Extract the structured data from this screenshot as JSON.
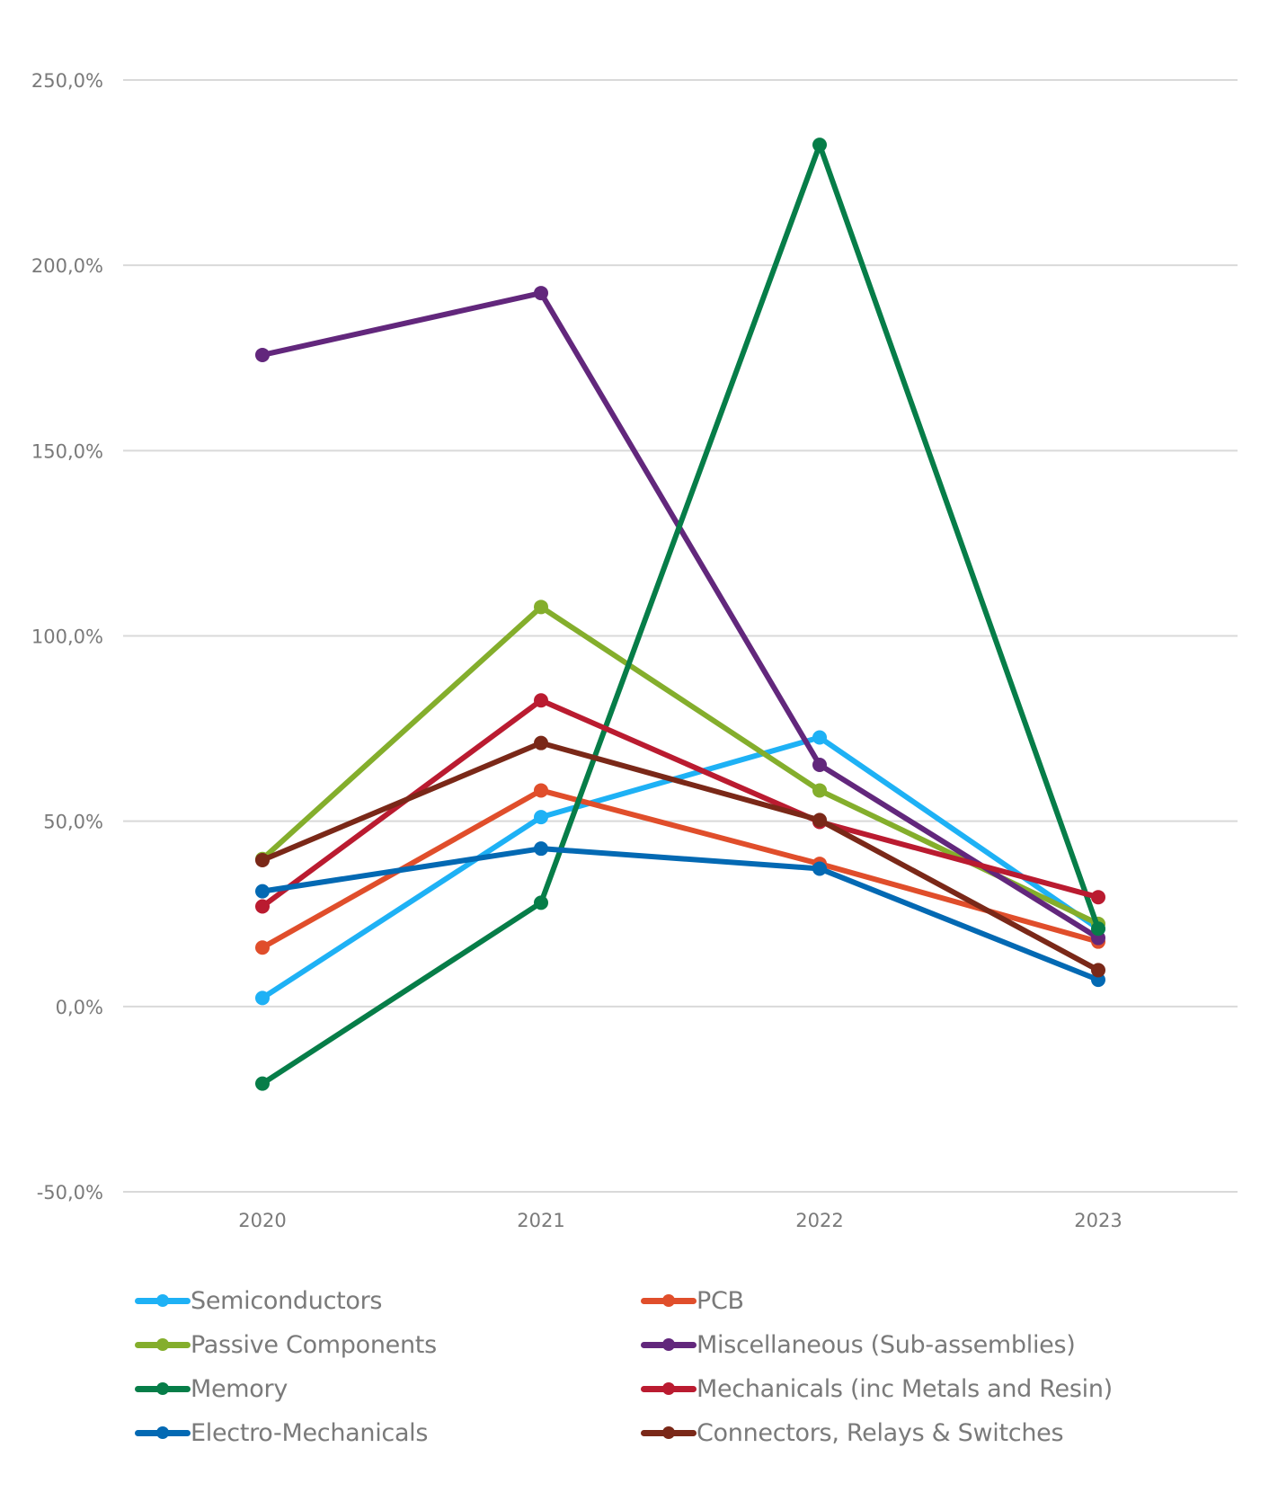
{
  "chart_data": {
    "type": "line",
    "title": "",
    "xlabel": "",
    "ylabel": "",
    "categories": [
      "2020",
      "2021",
      "2022",
      "2023"
    ],
    "ylim": [
      -50,
      250
    ],
    "yticks": [
      -50,
      0,
      50,
      100,
      150,
      200,
      250
    ],
    "ytick_labels": [
      "-50,0%",
      "0,0%",
      "50,0%",
      "100,0%",
      "150,0%",
      "200,0%",
      "250,0%"
    ],
    "grid": true,
    "legend_position": "bottom",
    "series": [
      {
        "name": "Semiconductors",
        "color": "#1EB1F5",
        "values": [
          2.3,
          51.1,
          72.6,
          21.0
        ]
      },
      {
        "name": "PCB",
        "color": "#E04E2B",
        "values": [
          15.9,
          58.3,
          38.5,
          17.5
        ]
      },
      {
        "name": "Passive Components",
        "color": "#84AE2C",
        "values": [
          39.8,
          107.8,
          58.3,
          22.3
        ]
      },
      {
        "name": "Miscellaneous (Sub-assemblies)",
        "color": "#62277C",
        "values": [
          175.8,
          192.5,
          65.2,
          18.5
        ]
      },
      {
        "name": "Memory",
        "color": "#067D48",
        "values": [
          -20.8,
          28.0,
          232.5,
          21.0
        ]
      },
      {
        "name": "Mechanicals (inc Metals and Resin)",
        "color": "#BA1B30",
        "values": [
          27.0,
          82.6,
          49.8,
          29.5
        ]
      },
      {
        "name": "Electro-Mechanicals",
        "color": "#0369B3",
        "values": [
          31.1,
          42.6,
          37.2,
          7.2
        ]
      },
      {
        "name": "Connectors, Relays & Switches",
        "color": "#7A2818",
        "values": [
          39.5,
          71.1,
          50.3,
          9.8
        ]
      }
    ]
  }
}
